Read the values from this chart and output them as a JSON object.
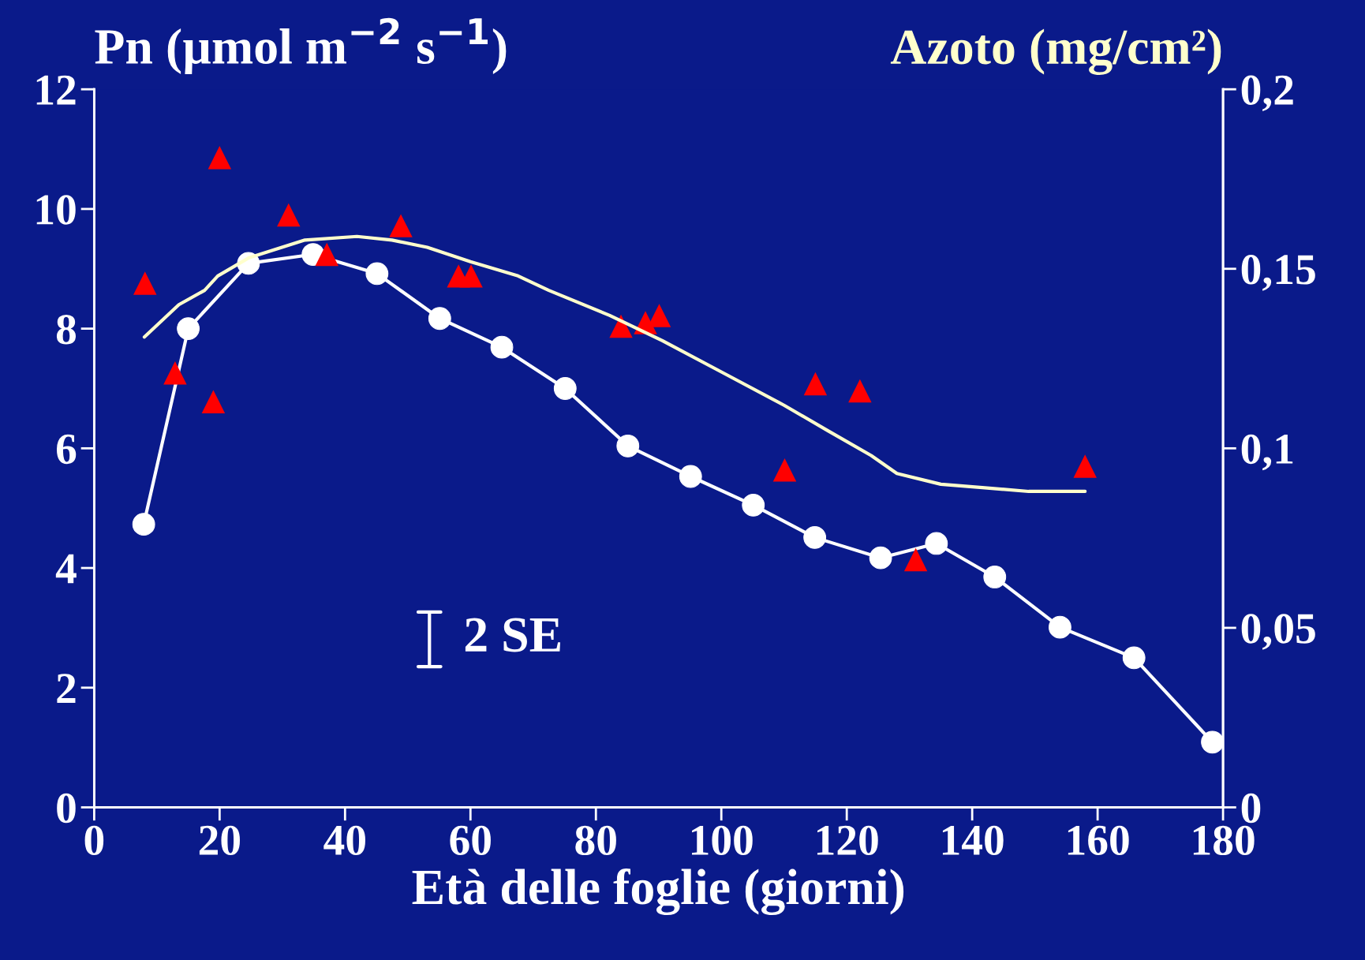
{
  "chart_data": {
    "type": "line",
    "xlabel": "Età delle foglie (giorni)",
    "ylabel": "Pn (µmol m$^{−2}$ s$^{−1}$)",
    "y2label": "Azoto (mg/cm²)",
    "xlim": [
      0,
      180
    ],
    "xticks": [
      0,
      20,
      40,
      60,
      80,
      100,
      120,
      140,
      160,
      180
    ],
    "ylim": [
      0,
      12
    ],
    "yticks": [
      0,
      2,
      4,
      6,
      8,
      10,
      12
    ],
    "y2lim": [
      0,
      0.2
    ],
    "y2ticks": [
      {
        "value": 0,
        "label": "0"
      },
      {
        "value": 0.05,
        "label": "0,05"
      },
      {
        "value": 0.1,
        "label": "0,1"
      },
      {
        "value": 0.15,
        "label": "0,15"
      },
      {
        "value": 0.2,
        "label": "0,2"
      }
    ],
    "annotations": [
      "2 SE"
    ],
    "series": [
      {
        "color": "#ffffff",
        "marker": "circle",
        "x": [
          7.9,
          15,
          24.6,
          34.9,
          45.1,
          55.1,
          65,
          75.1,
          85.1,
          95.1,
          105.1,
          114.9,
          125.4,
          134.3,
          143.6,
          154,
          165.8,
          178.3
        ],
        "values": [
          4.73,
          8.0,
          9.09,
          9.24,
          8.92,
          8.17,
          7.69,
          7.0,
          6.04,
          5.53,
          5.05,
          4.51,
          4.17,
          4.41,
          3.85,
          3.01,
          2.5,
          1.09
        ]
      },
      {
        "type": "scatter",
        "axis": "y2",
        "color": "#ff0000",
        "marker": "triangle",
        "x": [
          8.1,
          12.9,
          19.0,
          20,
          31,
          37.1,
          48.9,
          58.1,
          60.1,
          84,
          87.9,
          90.1,
          110.1,
          115,
          122.1,
          131,
          158
        ],
        "values": [
          0.146,
          0.121,
          0.113,
          0.181,
          0.165,
          0.154,
          0.162,
          0.148,
          0.148,
          0.134,
          0.135,
          0.137,
          0.094,
          0.118,
          0.116,
          0.069,
          0.095
        ]
      },
      {
        "axis": "y2",
        "color": "#ffffcc",
        "marker": "none",
        "x": [
          8,
          13.5,
          17.6,
          19.7,
          24.6,
          33.6,
          41.9,
          47.5,
          53.1,
          60,
          67.6,
          72.5,
          82.2,
          90.6,
          100.3,
          110,
          116.9,
          123.9,
          128,
          135,
          142,
          149,
          158
        ],
        "values": [
          0.131,
          0.14,
          0.144,
          0.148,
          0.153,
          0.158,
          0.159,
          0.158,
          0.156,
          0.152,
          0.148,
          0.144,
          0.137,
          0.13,
          0.121,
          0.112,
          0.105,
          0.098,
          0.093,
          0.09,
          0.089,
          0.088,
          0.088
        ]
      }
    ]
  }
}
